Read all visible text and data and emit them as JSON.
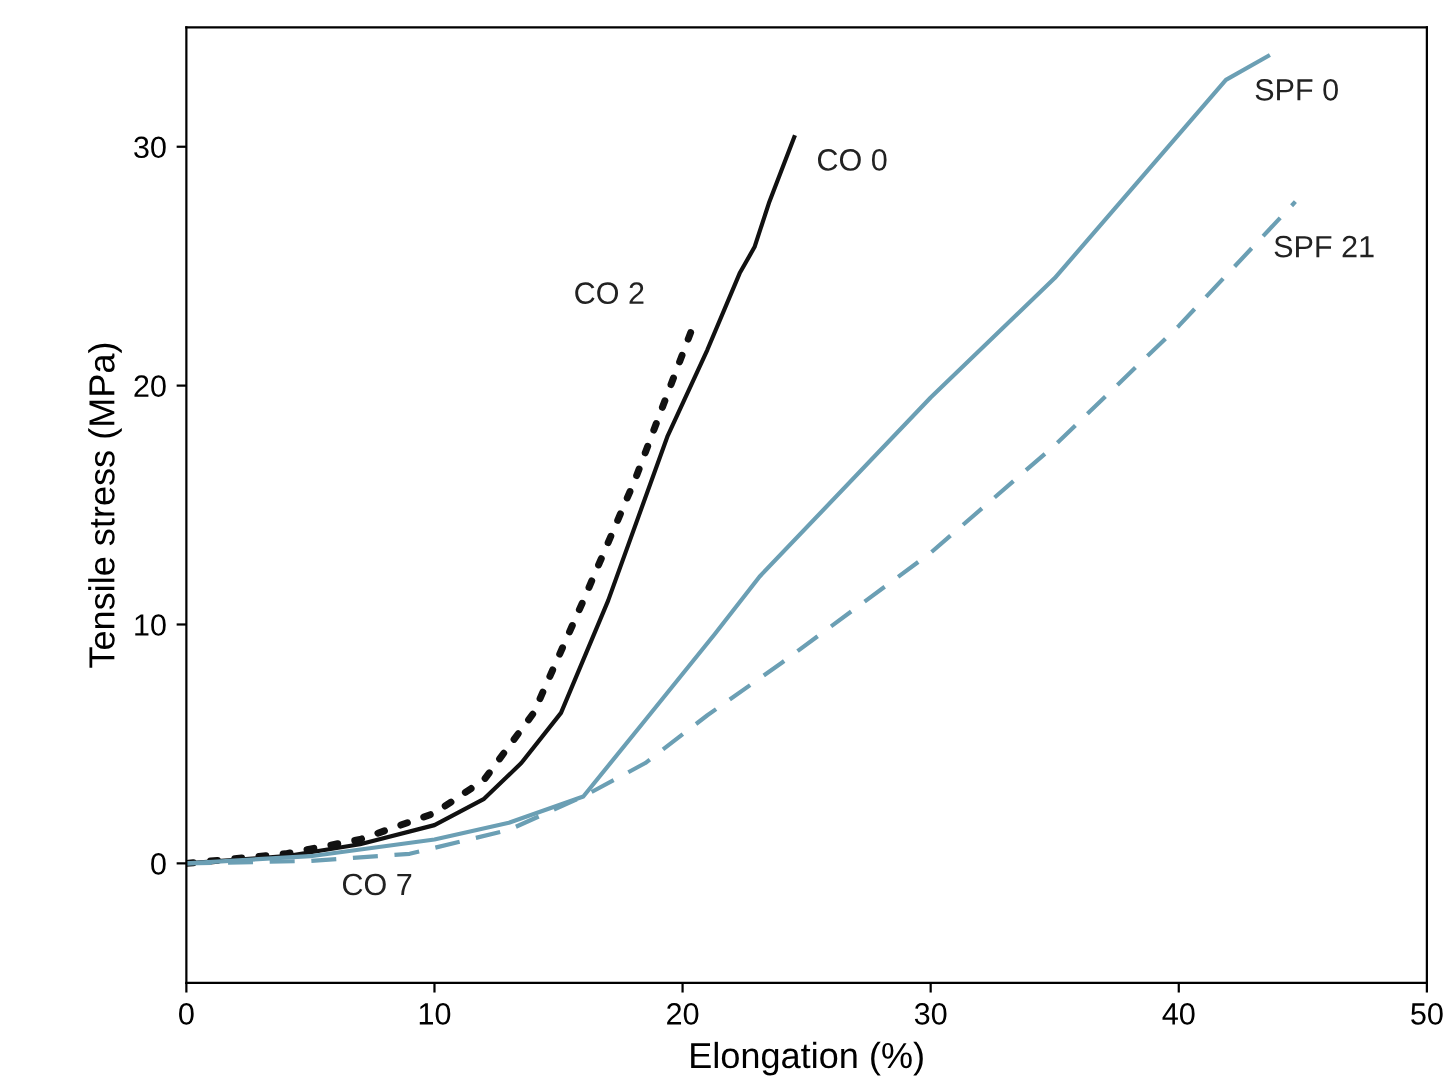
{
  "chart_data": {
    "type": "line",
    "xlabel": "Elongation (%)",
    "ylabel": "Tensile stress (MPa)",
    "xlim": [
      0,
      50
    ],
    "ylim": [
      -5,
      35
    ],
    "xticks": [
      0,
      10,
      20,
      30,
      40,
      50
    ],
    "yticks": [
      0,
      10,
      20,
      30
    ],
    "grid": false,
    "legend": false,
    "annotations": [
      "CO 7"
    ],
    "series": [
      {
        "name": "CO 0",
        "color": "#111111",
        "line_style": "solid",
        "x": [
          0,
          4,
          7,
          10,
          12,
          13.5,
          15.1,
          17,
          19.4,
          21,
          22.3,
          22.9,
          23.5,
          24.5
        ],
        "values": [
          0,
          0.3,
          0.8,
          1.6,
          2.7,
          4.2,
          6.3,
          11,
          17.9,
          21.5,
          24.7,
          25.8,
          27.7,
          30.4
        ]
      },
      {
        "name": "CO 2",
        "color": "#111111",
        "line_style": "dotted",
        "x": [
          0,
          4,
          7,
          10,
          12,
          14,
          16,
          18.1,
          20.5
        ],
        "values": [
          0,
          0.4,
          1.0,
          2.1,
          3.5,
          6.3,
          11,
          16.1,
          22.7
        ]
      },
      {
        "name": "SPF 0",
        "color": "#6b9fb4",
        "line_style": "solid",
        "x": [
          0,
          5,
          10,
          13,
          16,
          18.5,
          21.3,
          23.1,
          30,
          35,
          41.9,
          43.6
        ],
        "values": [
          0,
          0.3,
          1.0,
          1.7,
          2.8,
          6,
          9.6,
          12,
          19.5,
          24.5,
          32.8,
          33.8
        ]
      },
      {
        "name": "SPF 21",
        "color": "#6b9fb4",
        "line_style": "dashed",
        "x": [
          0,
          5,
          9,
          13,
          16,
          18.5,
          21,
          24,
          30,
          35,
          40,
          44.7
        ],
        "values": [
          0,
          0.1,
          0.4,
          1.4,
          2.8,
          4.2,
          6.2,
          8.4,
          13,
          17.5,
          22.5,
          27.7
        ]
      }
    ]
  }
}
